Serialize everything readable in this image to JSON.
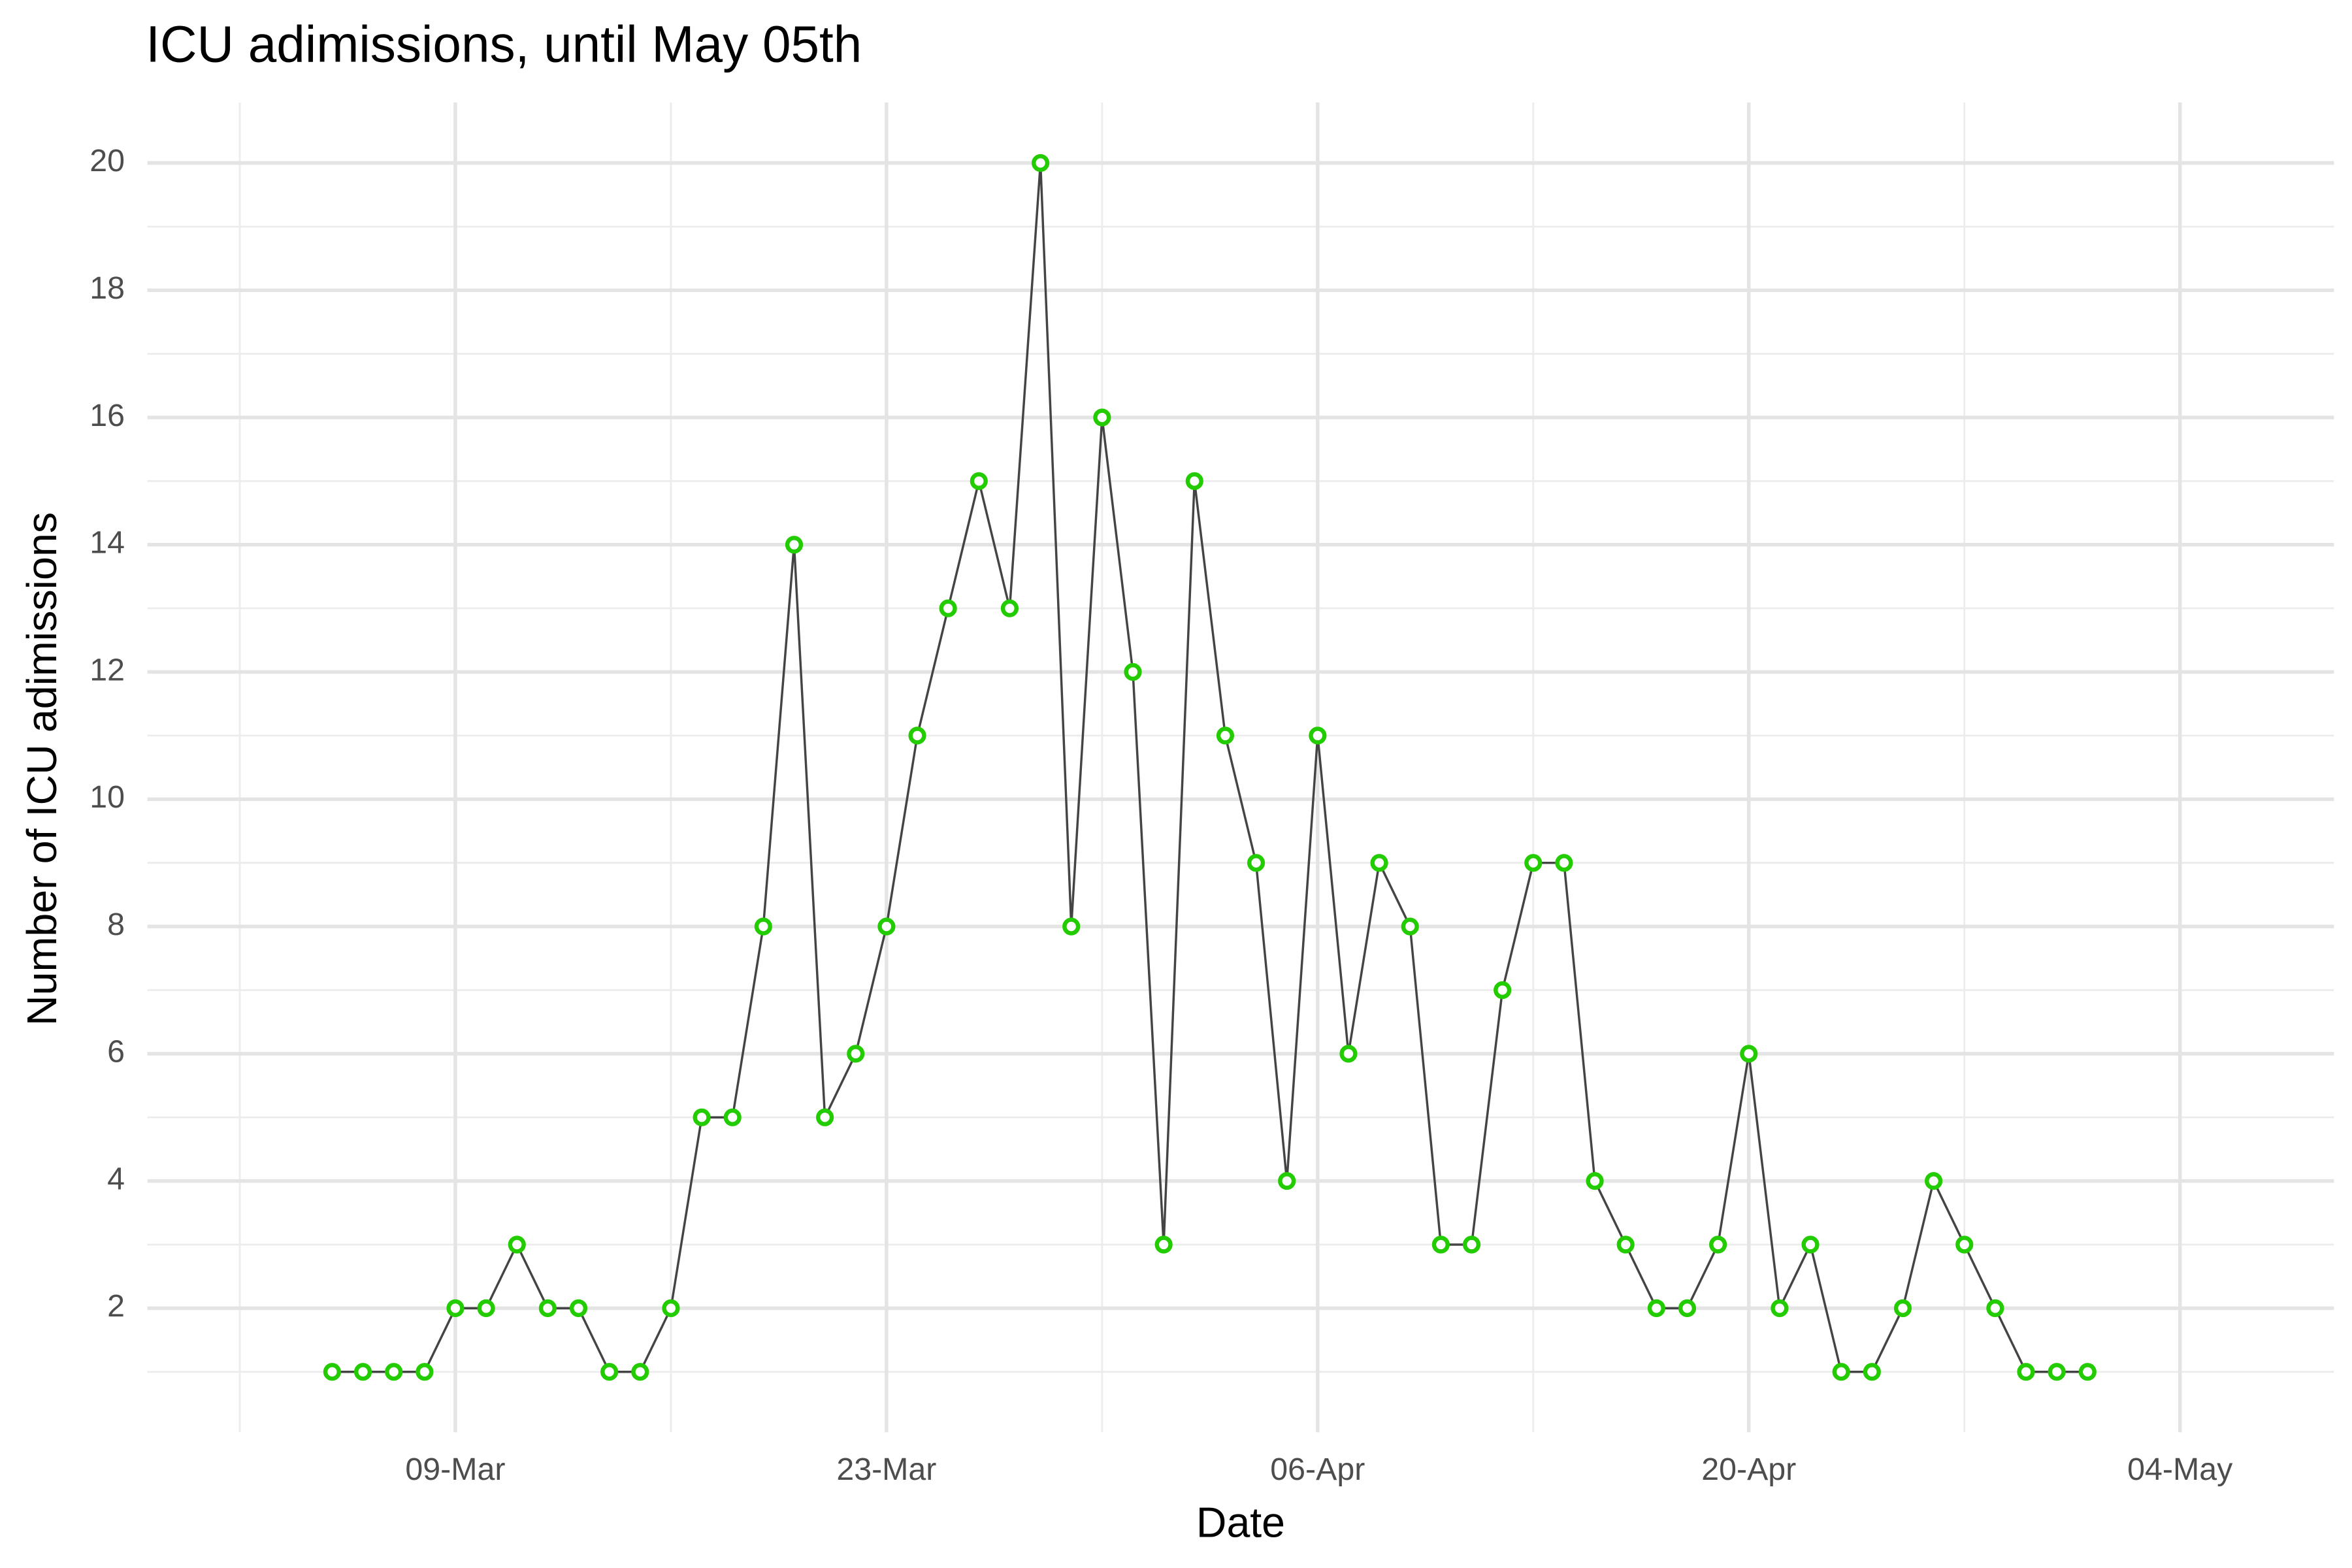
{
  "chart_data": {
    "type": "line",
    "title": "ICU adimissions, until May 05th",
    "x_label": "Date",
    "y_label": "Number of ICU adimissions",
    "x": [
      "05-Mar",
      "06-Mar",
      "07-Mar",
      "08-Mar",
      "09-Mar",
      "10-Mar",
      "11-Mar",
      "12-Mar",
      "13-Mar",
      "14-Mar",
      "15-Mar",
      "16-Mar",
      "17-Mar",
      "18-Mar",
      "19-Mar",
      "20-Mar",
      "21-Mar",
      "22-Mar",
      "23-Mar",
      "24-Mar",
      "25-Mar",
      "26-Mar",
      "27-Mar",
      "28-Mar",
      "29-Mar",
      "30-Mar",
      "31-Mar",
      "01-Apr",
      "02-Apr",
      "03-Apr",
      "04-Apr",
      "05-Apr",
      "06-Apr",
      "07-Apr",
      "08-Apr",
      "09-Apr",
      "10-Apr",
      "11-Apr",
      "12-Apr",
      "13-Apr",
      "14-Apr",
      "15-Apr",
      "16-Apr",
      "17-Apr",
      "18-Apr",
      "19-Apr",
      "20-Apr",
      "21-Apr",
      "22-Apr",
      "23-Apr",
      "24-Apr",
      "25-Apr",
      "26-Apr",
      "27-Apr",
      "28-Apr",
      "29-Apr",
      "30-Apr",
      "01-May"
    ],
    "values": [
      1,
      1,
      1,
      1,
      2,
      2,
      3,
      2,
      2,
      1,
      1,
      2,
      5,
      5,
      8,
      14,
      5,
      6,
      8,
      11,
      13,
      15,
      13,
      20,
      8,
      16,
      12,
      3,
      15,
      11,
      9,
      4,
      11,
      6,
      9,
      8,
      3,
      3,
      7,
      9,
      9,
      4,
      3,
      2,
      2,
      3,
      6,
      2,
      3,
      1,
      1,
      2,
      4,
      3,
      2,
      1,
      1,
      1
    ],
    "line_color": "#444444",
    "marker_color": "#22cc00",
    "xlim": [
      "27-Feb",
      "09-May"
    ],
    "xticks": [
      "09-Mar",
      "23-Mar",
      "06-Apr",
      "20-Apr",
      "04-May"
    ],
    "ylim": [
      0.05,
      20.95
    ],
    "yticks": [
      2,
      4,
      6,
      8,
      10,
      12,
      14,
      16,
      18,
      20
    ],
    "grid": true
  }
}
